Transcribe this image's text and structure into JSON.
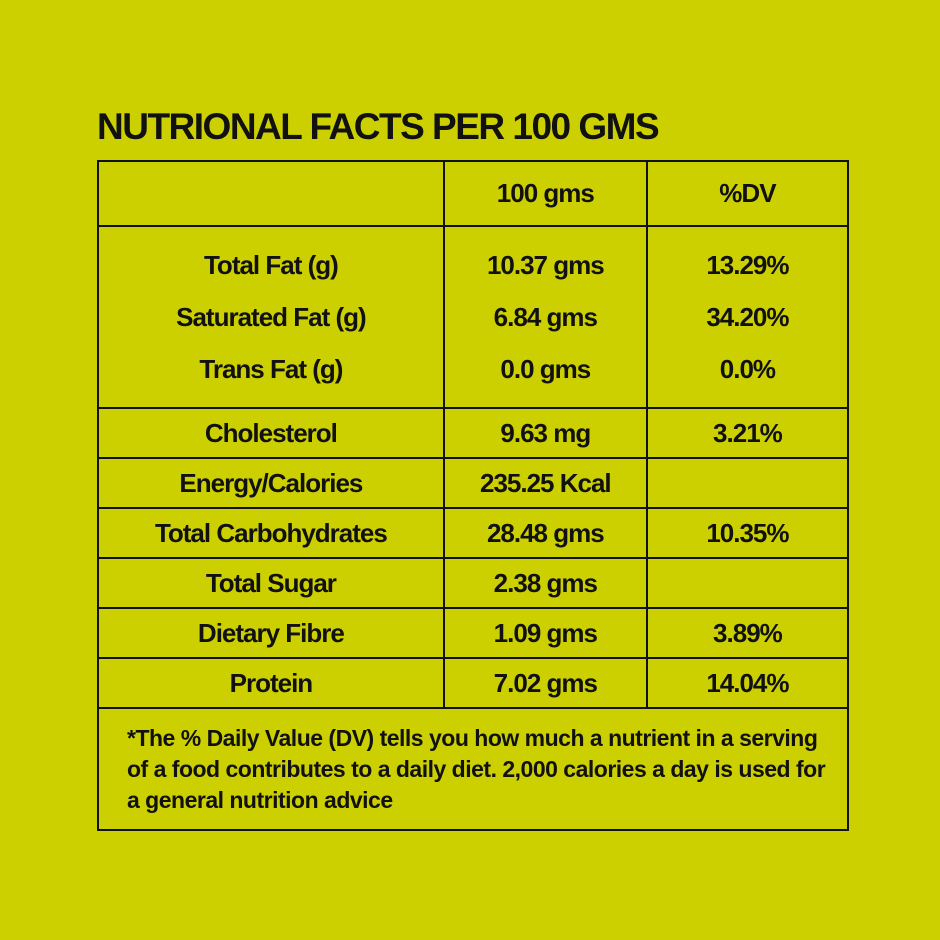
{
  "title": "NUTRIONAL FACTS PER 100 GMS",
  "header": {
    "col1": "",
    "col2": "100 gms",
    "col3": "%DV"
  },
  "fat_group": [
    {
      "nutrient": "Total Fat (g)",
      "amount": "10.37 gms",
      "dv": "13.29%"
    },
    {
      "nutrient": "Saturated Fat (g)",
      "amount": "6.84 gms",
      "dv": "34.20%"
    },
    {
      "nutrient": "Trans Fat (g)",
      "amount": "0.0 gms",
      "dv": "0.0%"
    }
  ],
  "rows": [
    {
      "nutrient": "Cholesterol",
      "amount": "9.63 mg",
      "dv": "3.21%"
    },
    {
      "nutrient": "Energy/Calories",
      "amount": "235.25 Kcal",
      "dv": ""
    },
    {
      "nutrient": "Total Carbohydrates",
      "amount": "28.48 gms",
      "dv": "10.35%"
    },
    {
      "nutrient": "Total Sugar",
      "amount": "2.38 gms",
      "dv": ""
    },
    {
      "nutrient": "Dietary Fibre",
      "amount": "1.09 gms",
      "dv": "3.89%"
    },
    {
      "nutrient": "Protein",
      "amount": "7.02 gms",
      "dv": "14.04%"
    }
  ],
  "footnote": "*The % Daily Value (DV) tells you how much a nutrient in a serving of a food contributes to a daily diet. 2,000 calories a day is used for a general nutrition advice",
  "colors": {
    "background": "#cdd000",
    "text": "#111111"
  }
}
